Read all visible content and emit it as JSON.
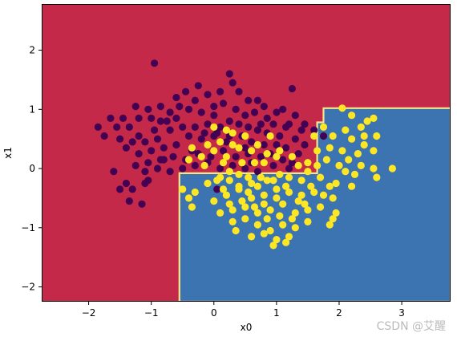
{
  "chart_data": {
    "type": "scatter",
    "title": "",
    "xlabel": "x0",
    "ylabel": "x1",
    "xlim": [
      -2.75,
      3.78
    ],
    "ylim": [
      -2.25,
      2.78
    ],
    "xticks": [
      -2,
      -1,
      0,
      1,
      2,
      3
    ],
    "yticks": [
      -2,
      -1,
      0,
      1,
      2
    ],
    "grid": false,
    "legend": "none",
    "regions": {
      "class_0_color": "#c5294a",
      "class_1_color": "#3c74b1",
      "boundary_color": "#f5e68a",
      "class_1_region_polygon": [
        [
          -0.55,
          -2.25
        ],
        [
          -0.55,
          -0.08
        ],
        [
          1.65,
          -0.08
        ],
        [
          1.65,
          0.78
        ],
        [
          1.75,
          0.78
        ],
        [
          1.75,
          1.02
        ],
        [
          3.78,
          1.02
        ],
        [
          3.78,
          -2.25
        ]
      ]
    },
    "series": [
      {
        "label": 0,
        "color": "#440154",
        "points": [
          [
            -0.95,
            1.78
          ],
          [
            -0.25,
            1.4
          ],
          [
            -0.45,
            1.3
          ],
          [
            -1.25,
            1.05
          ],
          [
            -1.05,
            1.0
          ],
          [
            -0.85,
            1.05
          ],
          [
            -0.6,
            1.2
          ],
          [
            -0.3,
            1.15
          ],
          [
            -0.1,
            1.25
          ],
          [
            0.1,
            1.3
          ],
          [
            0.3,
            1.45
          ],
          [
            0.25,
            1.6
          ],
          [
            0.4,
            1.3
          ],
          [
            0.55,
            1.15
          ],
          [
            0.7,
            1.15
          ],
          [
            0.85,
            0.85
          ],
          [
            1.0,
            0.95
          ],
          [
            1.1,
            1.0
          ],
          [
            1.25,
            1.35
          ],
          [
            1.3,
            0.9
          ],
          [
            1.45,
            0.75
          ],
          [
            1.6,
            0.65
          ],
          [
            1.4,
            0.65
          ],
          [
            1.2,
            0.75
          ],
          [
            1.75,
            0.55
          ],
          [
            -1.65,
            0.85
          ],
          [
            -1.45,
            0.85
          ],
          [
            -1.35,
            0.7
          ],
          [
            -1.2,
            0.55
          ],
          [
            -1.0,
            0.85
          ],
          [
            -0.85,
            0.8
          ],
          [
            -0.7,
            0.95
          ],
          [
            -0.55,
            1.05
          ],
          [
            -0.4,
            1.0
          ],
          [
            -0.2,
            0.95
          ],
          [
            0.0,
            1.05
          ],
          [
            0.15,
            1.1
          ],
          [
            0.35,
            1.0
          ],
          [
            0.5,
            0.9
          ],
          [
            0.65,
            0.95
          ],
          [
            0.8,
            1.05
          ],
          [
            0.95,
            0.75
          ],
          [
            1.05,
            0.55
          ],
          [
            1.15,
            0.7
          ],
          [
            1.3,
            0.5
          ],
          [
            -1.75,
            0.55
          ],
          [
            -1.5,
            0.5
          ],
          [
            -1.3,
            0.45
          ],
          [
            -1.1,
            0.45
          ],
          [
            -0.9,
            0.5
          ],
          [
            -0.7,
            0.65
          ],
          [
            -0.5,
            0.7
          ],
          [
            -0.3,
            0.7
          ],
          [
            -0.1,
            0.75
          ],
          [
            0.1,
            0.7
          ],
          [
            0.25,
            0.8
          ],
          [
            0.4,
            0.75
          ],
          [
            0.55,
            0.7
          ],
          [
            0.7,
            0.65
          ],
          [
            0.85,
            0.6
          ],
          [
            1.0,
            0.4
          ],
          [
            1.15,
            0.35
          ],
          [
            1.35,
            0.25
          ],
          [
            -1.4,
            0.35
          ],
          [
            -1.2,
            0.25
          ],
          [
            -1.0,
            0.3
          ],
          [
            -0.8,
            0.35
          ],
          [
            -0.6,
            0.4
          ],
          [
            -0.4,
            0.55
          ],
          [
            -0.2,
            0.5
          ],
          [
            0.0,
            0.55
          ],
          [
            0.2,
            0.45
          ],
          [
            0.45,
            0.55
          ],
          [
            0.6,
            0.45
          ],
          [
            0.8,
            0.4
          ],
          [
            0.9,
            0.25
          ],
          [
            1.1,
            0.15
          ],
          [
            1.25,
            0.1
          ],
          [
            -1.25,
            0.05
          ],
          [
            -1.05,
            0.1
          ],
          [
            -0.85,
            0.15
          ],
          [
            -0.65,
            0.2
          ],
          [
            -0.45,
            0.15
          ],
          [
            -0.25,
            0.25
          ],
          [
            -0.05,
            0.2
          ],
          [
            0.15,
            0.3
          ],
          [
            0.35,
            0.2
          ],
          [
            0.55,
            0.25
          ],
          [
            0.75,
            0.2
          ],
          [
            0.95,
            0.05
          ],
          [
            1.2,
            0.0
          ],
          [
            -1.6,
            -0.05
          ],
          [
            -1.4,
            -0.25
          ],
          [
            -1.1,
            -0.05
          ],
          [
            -0.9,
            0.0
          ],
          [
            -0.7,
            -0.05
          ],
          [
            -0.5,
            0.0
          ],
          [
            -0.3,
            0.05
          ],
          [
            -0.1,
            0.1
          ],
          [
            0.1,
            0.0
          ],
          [
            0.3,
            0.05
          ],
          [
            0.5,
            0.0
          ],
          [
            0.7,
            -0.05
          ],
          [
            -1.3,
            -0.35
          ],
          [
            -1.1,
            -0.25
          ],
          [
            -1.05,
            -0.2
          ],
          [
            -1.35,
            -0.55
          ],
          [
            -1.5,
            -0.35
          ],
          [
            -1.15,
            -0.6
          ],
          [
            0.05,
            -0.35
          ],
          [
            -1.85,
            0.7
          ],
          [
            -1.55,
            0.7
          ],
          [
            -0.95,
            0.65
          ],
          [
            -0.75,
            0.8
          ],
          [
            -0.15,
            0.6
          ],
          [
            0.05,
            0.6
          ],
          [
            0.75,
            0.75
          ],
          [
            -0.35,
            0.3
          ],
          [
            0.25,
            0.55
          ],
          [
            -0.6,
            0.85
          ],
          [
            1.45,
            0.4
          ],
          [
            -0.8,
            0.15
          ],
          [
            0.5,
            0.35
          ],
          [
            -1.2,
            0.85
          ],
          [
            0.0,
            0.9
          ],
          [
            0.6,
            0.1
          ]
        ]
      },
      {
        "label": 1,
        "color": "#fde725",
        "points": [
          [
            2.05,
            1.02
          ],
          [
            2.2,
            0.9
          ],
          [
            2.45,
            0.8
          ],
          [
            2.55,
            0.85
          ],
          [
            2.35,
            0.7
          ],
          [
            2.1,
            0.65
          ],
          [
            1.9,
            0.55
          ],
          [
            1.75,
            0.7
          ],
          [
            2.2,
            0.5
          ],
          [
            2.4,
            0.4
          ],
          [
            2.55,
            0.3
          ],
          [
            2.3,
            0.25
          ],
          [
            2.05,
            0.3
          ],
          [
            1.85,
            0.35
          ],
          [
            1.65,
            0.3
          ],
          [
            2.15,
            0.15
          ],
          [
            2.35,
            0.05
          ],
          [
            2.0,
            0.05
          ],
          [
            1.8,
            0.15
          ],
          [
            2.55,
            0.0
          ],
          [
            2.85,
            0.0
          ],
          [
            2.6,
            -0.15
          ],
          [
            2.2,
            -0.3
          ],
          [
            1.95,
            -0.25
          ],
          [
            1.7,
            -0.15
          ],
          [
            1.55,
            -0.3
          ],
          [
            1.4,
            -0.2
          ],
          [
            1.2,
            -0.15
          ],
          [
            1.05,
            -0.1
          ],
          [
            0.85,
            -0.2
          ],
          [
            0.7,
            -0.3
          ],
          [
            0.55,
            -0.15
          ],
          [
            0.4,
            -0.1
          ],
          [
            0.25,
            -0.2
          ],
          [
            0.1,
            -0.15
          ],
          [
            -0.1,
            -0.25
          ],
          [
            -0.3,
            -0.4
          ],
          [
            -0.4,
            -0.5
          ],
          [
            -0.35,
            -0.65
          ],
          [
            0.0,
            -0.55
          ],
          [
            0.2,
            -0.45
          ],
          [
            0.4,
            -0.35
          ],
          [
            0.6,
            -0.5
          ],
          [
            0.8,
            -0.45
          ],
          [
            1.0,
            -0.35
          ],
          [
            1.2,
            -0.4
          ],
          [
            1.4,
            -0.45
          ],
          [
            1.6,
            -0.4
          ],
          [
            1.85,
            -0.3
          ],
          [
            1.9,
            -0.5
          ],
          [
            1.7,
            -0.65
          ],
          [
            1.5,
            -0.7
          ],
          [
            1.3,
            -0.75
          ],
          [
            1.1,
            -0.6
          ],
          [
            0.9,
            -0.7
          ],
          [
            0.7,
            -0.75
          ],
          [
            0.5,
            -0.65
          ],
          [
            0.3,
            -0.7
          ],
          [
            0.1,
            -0.75
          ],
          [
            0.3,
            -0.9
          ],
          [
            0.5,
            -0.85
          ],
          [
            0.7,
            -0.95
          ],
          [
            0.9,
            -1.05
          ],
          [
            1.1,
            -0.95
          ],
          [
            1.3,
            -1.0
          ],
          [
            1.5,
            -0.9
          ],
          [
            1.95,
            -0.75
          ],
          [
            1.9,
            -0.85
          ],
          [
            1.2,
            -1.15
          ],
          [
            1.0,
            -1.2
          ],
          [
            0.8,
            -1.1
          ],
          [
            0.6,
            -1.15
          ],
          [
            0.35,
            -1.05
          ],
          [
            1.15,
            -1.25
          ],
          [
            0.95,
            -1.3
          ],
          [
            0.4,
            -0.3
          ],
          [
            0.6,
            -0.25
          ],
          [
            0.8,
            -0.6
          ],
          [
            1.0,
            -0.5
          ],
          [
            1.35,
            -0.55
          ],
          [
            -0.4,
            0.15
          ],
          [
            -0.2,
            0.2
          ],
          [
            0.0,
            0.3
          ],
          [
            0.2,
            0.2
          ],
          [
            0.4,
            0.35
          ],
          [
            0.6,
            0.3
          ],
          [
            0.8,
            0.1
          ],
          [
            1.0,
            0.2
          ],
          [
            -0.1,
            0.4
          ],
          [
            0.1,
            0.45
          ],
          [
            0.3,
            0.6
          ],
          [
            0.5,
            0.55
          ],
          [
            0.7,
            0.4
          ],
          [
            0.9,
            0.55
          ],
          [
            1.05,
            0.3
          ],
          [
            -0.35,
            0.35
          ],
          [
            0.0,
            0.7
          ],
          [
            0.2,
            0.65
          ],
          [
            1.5,
            0.1
          ],
          [
            1.65,
            0.05
          ],
          [
            1.35,
            0.05
          ],
          [
            0.45,
            0.1
          ],
          [
            0.15,
            0.1
          ],
          [
            -0.15,
            0.05
          ],
          [
            0.65,
            0.1
          ],
          [
            0.85,
            0.25
          ],
          [
            1.25,
            0.2
          ],
          [
            0.3,
            0.4
          ],
          [
            1.6,
            0.55
          ],
          [
            1.5,
            -0.05
          ],
          [
            2.1,
            -0.05
          ],
          [
            2.25,
            -0.1
          ],
          [
            0.05,
            -0.2
          ],
          [
            0.25,
            -0.05
          ],
          [
            0.55,
            -0.4
          ],
          [
            0.75,
            -0.15
          ],
          [
            0.95,
            -0.2
          ],
          [
            1.15,
            -0.3
          ],
          [
            1.45,
            -0.6
          ],
          [
            1.75,
            -0.45
          ],
          [
            2.4,
            0.55
          ],
          [
            2.6,
            0.55
          ],
          [
            0.15,
            -0.35
          ],
          [
            -0.5,
            -0.35
          ],
          [
            0.45,
            -0.55
          ],
          [
            0.65,
            -0.65
          ],
          [
            1.05,
            -0.8
          ],
          [
            1.25,
            -0.85
          ],
          [
            0.85,
            -0.85
          ],
          [
            0.25,
            -0.6
          ],
          [
            1.85,
            -0.95
          ]
        ]
      }
    ]
  },
  "watermark": "CSDN @艾醒"
}
